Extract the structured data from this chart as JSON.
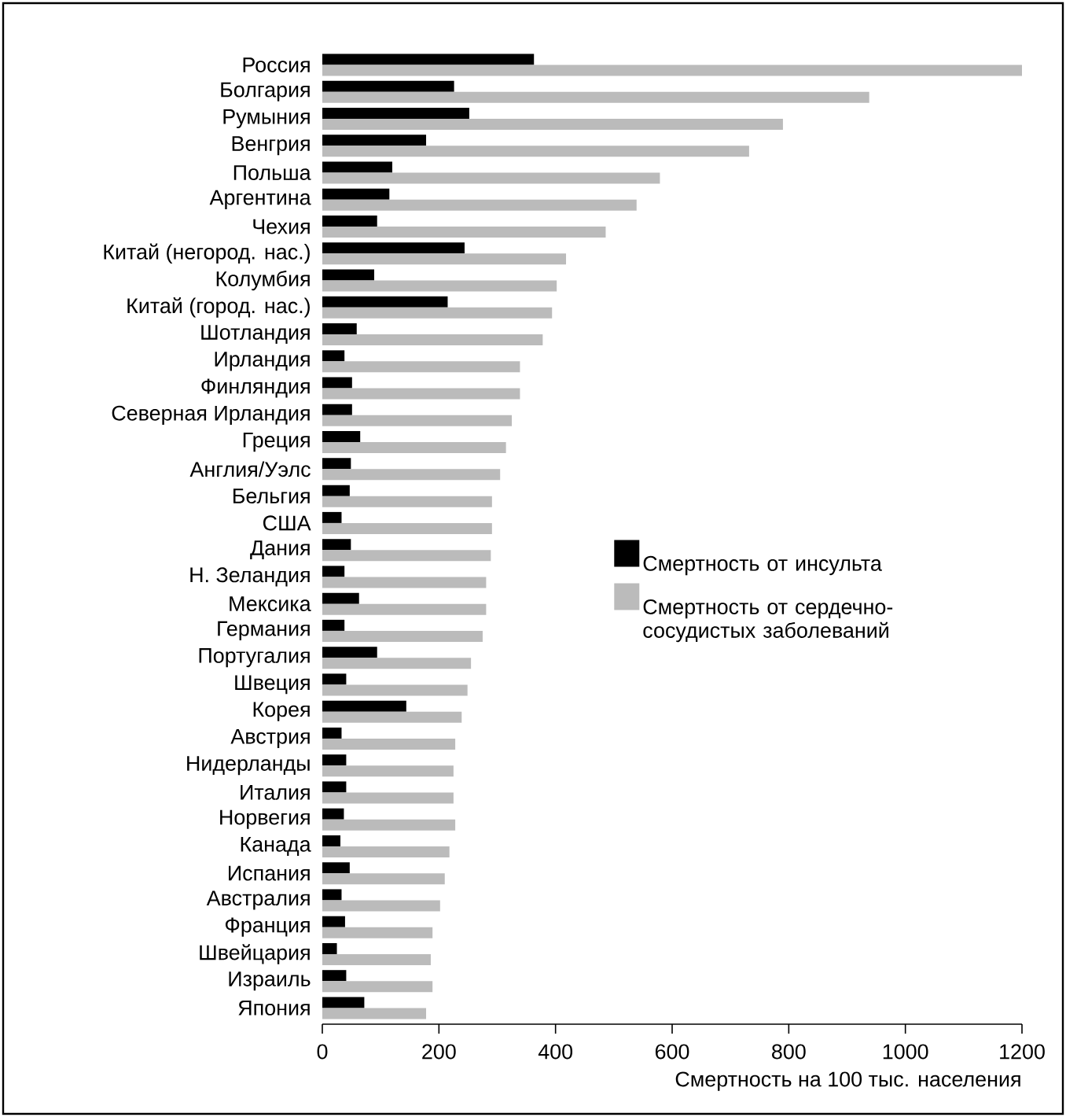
{
  "chart_data": {
    "type": "bar",
    "orientation": "horizontal",
    "xlabel": "Смертность на 100 тыс. населения",
    "categories": [
      "Россия",
      "Болгария",
      "Румыния",
      "Венгрия",
      "Польша",
      "Аргентина",
      "Чехия",
      "Китай (негород. нас.)",
      "Колумбия",
      "Китай (город. нас.)",
      "Шотландия",
      "Ирландия",
      "Финляндия",
      "Северная Ирландия",
      "Греция",
      "Англия/Уэлс",
      "Бельгия",
      "США",
      "Дания",
      "Н. Зеландия",
      "Мексика",
      "Германия",
      "Португалия",
      "Швеция",
      "Корея",
      "Австрия",
      "Нидерланды",
      "Италия",
      "Норвегия",
      "Канада",
      "Испания",
      "Австралия",
      "Франция",
      "Швейцария",
      "Израиль",
      "Япония"
    ],
    "series": [
      {
        "name": "Смертность от инсульта",
        "color": "#000000",
        "values": [
          363,
          226,
          252,
          178,
          120,
          115,
          94,
          244,
          89,
          215,
          59,
          38,
          51,
          51,
          65,
          49,
          47,
          33,
          49,
          38,
          63,
          38,
          94,
          41,
          144,
          33,
          41,
          41,
          37,
          31,
          47,
          33,
          39,
          25,
          41,
          72
        ]
      },
      {
        "name": "Смертность от сердечно-сосудистых заболеваний",
        "color": "#bbbbbb",
        "values": [
          1200,
          938,
          790,
          732,
          579,
          539,
          486,
          418,
          402,
          394,
          378,
          339,
          339,
          325,
          315,
          305,
          291,
          291,
          289,
          281,
          281,
          275,
          255,
          249,
          239,
          228,
          225,
          225,
          228,
          218,
          210,
          202,
          189,
          186,
          189,
          178
        ]
      }
    ],
    "xlim": [
      0,
      1200
    ],
    "xticks": [
      0,
      200,
      400,
      600,
      800,
      1000,
      1200
    ],
    "legend": "right"
  }
}
